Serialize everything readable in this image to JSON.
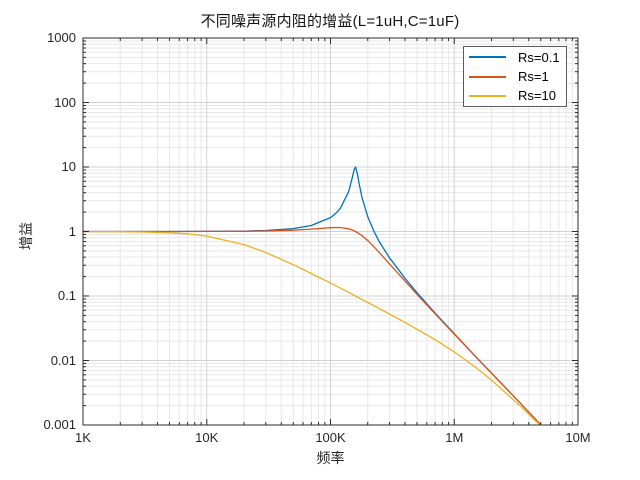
{
  "figure": {
    "title": "不同噪声源内阻的增益(L=1uH,C=1uF)",
    "xlabel": "频率",
    "ylabel": "增益"
  },
  "axes": {
    "x_ticks": [
      {
        "value": 1000,
        "label": "1K"
      },
      {
        "value": 10000,
        "label": "10K"
      },
      {
        "value": 100000,
        "label": "100K"
      },
      {
        "value": 1000000,
        "label": "1M"
      },
      {
        "value": 10000000,
        "label": "10M"
      }
    ],
    "y_ticks": [
      {
        "value": 1000,
        "label": "1000"
      },
      {
        "value": 100,
        "label": "100"
      },
      {
        "value": 10,
        "label": "10"
      },
      {
        "value": 1,
        "label": "1"
      },
      {
        "value": 0.1,
        "label": "0.1"
      },
      {
        "value": 0.01,
        "label": "0.01"
      },
      {
        "value": 0.001,
        "label": "0.001"
      }
    ]
  },
  "legend": {
    "items": [
      {
        "label": "Rs=0.1",
        "color": "#0072BD"
      },
      {
        "label": "Rs=1",
        "color": "#D95319"
      },
      {
        "label": "Rs=10",
        "color": "#EDB120"
      }
    ]
  },
  "colors": {
    "grid_major": "#d2d2d2",
    "grid_minor": "#e7e7e7",
    "axis_box": "#2b2b2b",
    "tick": "#2b2b2b"
  },
  "chart_data": {
    "type": "line",
    "title": "不同噪声源内阻的增益(L=1uH,C=1uF)",
    "xlabel": "频率",
    "ylabel": "增益",
    "x_scale": "log",
    "y_scale": "log",
    "xlim": [
      1000,
      10000000
    ],
    "ylim": [
      0.001,
      1000
    ],
    "grid": "major+minor",
    "legend_position": "top-right",
    "resonance_hz": 159155,
    "x_hz": [
      1000,
      2000,
      3000,
      5000,
      7000,
      10000,
      20000,
      30000,
      50000,
      70000,
      100000,
      112000,
      120000,
      140000,
      150000,
      155000,
      159155,
      165000,
      170000,
      180000,
      200000,
      225000,
      250000,
      300000,
      400000,
      500000,
      700000,
      1000000,
      1500000,
      2000000,
      3500000,
      5000000
    ],
    "series": [
      {
        "name": "Rs=0.1",
        "color": "#0072BD",
        "values": [
          1.0,
          1.0002,
          1.0004,
          1.001,
          1.0019,
          1.0039,
          1.016,
          1.0366,
          1.1088,
          1.238,
          1.6435,
          1.9621,
          2.2829,
          4.1199,
          6.841,
          9.0756,
          10.0,
          7.8224,
          5.6551,
          3.32,
          1.6874,
          0.9915,
          0.6776,
          0.3906,
          0.1879,
          0.1127,
          0.0545,
          0.026,
          0.01139,
          0.00637,
          0.00207,
          0.00101
        ]
      },
      {
        "name": "Rs=1",
        "color": "#D95319",
        "values": [
          1.0,
          1.0001,
          1.0002,
          1.0005,
          1.001,
          1.002,
          1.0079,
          1.0176,
          1.0477,
          1.0885,
          1.1463,
          1.1547,
          1.1511,
          1.101,
          1.0537,
          1.0254,
          1.0,
          0.9621,
          0.9282,
          0.8584,
          0.7227,
          0.5778,
          0.4652,
          0.3151,
          0.17,
          0.1063,
          0.053,
          0.0256,
          0.01132,
          0.00635,
          0.00207,
          0.00101
        ]
      },
      {
        "name": "Rs=10",
        "color": "#EDB120",
        "values": [
          0.9981,
          0.9924,
          0.983,
          0.9549,
          0.9169,
          0.8491,
          0.6265,
          0.4723,
          0.306,
          0.2236,
          0.1584,
          0.1417,
          0.1324,
          0.1136,
          0.1061,
          0.1027,
          0.1,
          0.0965,
          0.0936,
          0.0884,
          0.0795,
          0.0706,
          0.0634,
          0.0526,
          0.0389,
          0.0306,
          0.021,
          0.0136,
          0.00776,
          0.00497,
          0.00189,
          0.00097
        ]
      }
    ]
  }
}
